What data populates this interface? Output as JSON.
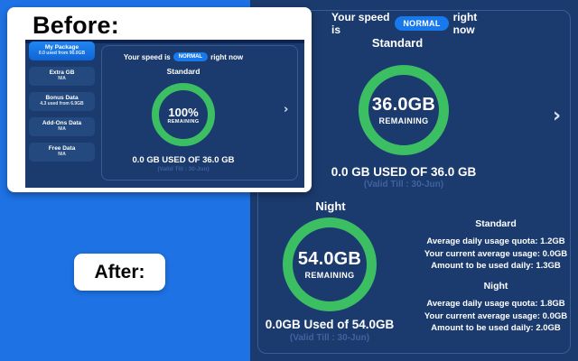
{
  "colors": {
    "background_blue": "#1e72e4",
    "panel_navy": "#1b3b6e",
    "ring_green": "#3cbf63",
    "badge_blue": "#1879ec"
  },
  "before": {
    "title": "Before:",
    "sidebar": [
      {
        "label": "My Package",
        "sub": "0.0 used from 90.0GB",
        "active": true
      },
      {
        "label": "Extra GB",
        "sub": "N/A",
        "active": false
      },
      {
        "label": "Bonus Data",
        "sub": "4.3 used from 6.9GB",
        "active": false
      },
      {
        "label": "Add-Ons Data",
        "sub": "N/A",
        "active": false
      },
      {
        "label": "Free Data",
        "sub": "N/A",
        "active": false
      }
    ],
    "speed_prefix": "Your speed is",
    "speed_badge": "NORMAL",
    "speed_suffix": "right now",
    "section_title": "Standard",
    "ring_value": "100%",
    "ring_label": "REMAINING",
    "usage_line": "0.0 GB USED OF 36.0 GB",
    "valid_till": "(Valid Till : 30-Jun)",
    "chevron": "›"
  },
  "after_label": "After:",
  "after": {
    "speed_prefix": "Your speed is",
    "speed_badge": "NORMAL",
    "speed_suffix": "right now",
    "standard": {
      "title": "Standard",
      "ring_value": "36.0GB",
      "ring_label": "REMAINING",
      "usage_line": "0.0 GB USED OF 36.0 GB",
      "valid_till": "(Valid Till : 30-Jun)"
    },
    "night": {
      "title": "Night",
      "ring_value": "54.0GB",
      "ring_label": "REMAINING",
      "usage_line": "0.0GB Used of 54.0GB",
      "valid_till": "(Valid Till : 30-Jun)"
    },
    "stats": [
      {
        "title": "Standard",
        "lines": [
          "Average daily usage quota: 1.2GB",
          "Your current average usage: 0.0GB",
          "Amount to be used daily: 1.3GB"
        ]
      },
      {
        "title": "Night",
        "lines": [
          "Average daily usage quota: 1.8GB",
          "Your current average usage: 0.0GB",
          "Amount to be used daily: 2.0GB"
        ]
      }
    ],
    "chevron": "›"
  }
}
